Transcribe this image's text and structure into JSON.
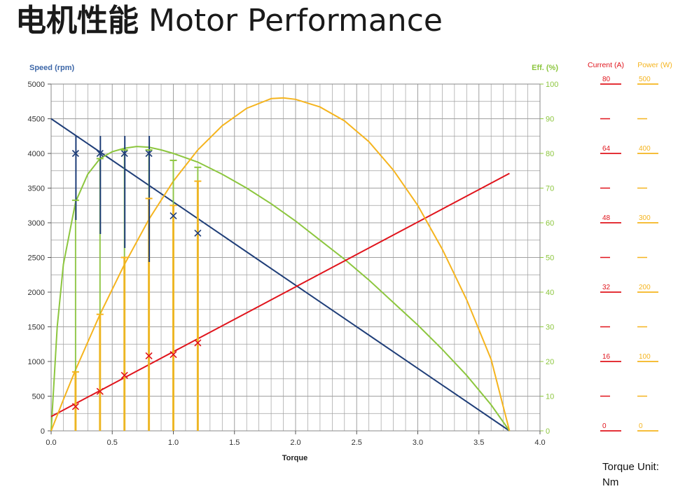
{
  "header": {
    "title_cn": "电机性能",
    "title_en": "Motor Performance"
  },
  "note": {
    "line1": "Torque Unit:",
    "line2": "Nm"
  },
  "colors": {
    "speed": "#1f3e78",
    "efficiency": "#8cc63e",
    "current": "#e0141c",
    "power": "#f5b41e",
    "grid": "#a0a0a0"
  },
  "chart_data": {
    "type": "line",
    "xlabel": "Torque",
    "xlim": [
      0,
      4
    ],
    "x_ticks": [
      "0.0",
      "0.5",
      "1.0",
      "1.5",
      "2.0",
      "2.5",
      "3.0",
      "3.5",
      "4.0"
    ],
    "y_left": {
      "label": "Speed (rpm)",
      "range": [
        0,
        5000
      ],
      "ticks": [
        "0",
        "500",
        "1000",
        "1500",
        "2000",
        "2500",
        "3000",
        "3500",
        "4000",
        "4500",
        "5000"
      ]
    },
    "y_right": {
      "label": "Eff. (%)",
      "range": [
        0,
        100
      ],
      "ticks": [
        "0",
        "10",
        "20",
        "30",
        "40",
        "50",
        "60",
        "70",
        "80",
        "90",
        "100"
      ]
    },
    "y_current": {
      "label": "Current (A)",
      "range": [
        0,
        80
      ],
      "ticks": [
        "0",
        "16",
        "32",
        "48",
        "64",
        "80"
      ]
    },
    "y_power": {
      "label": "Power (W)",
      "range": [
        0,
        500
      ],
      "ticks": [
        "0",
        "100",
        "200",
        "300",
        "400",
        "500"
      ]
    },
    "series": [
      {
        "name": "Speed (rpm)",
        "axis": "speed",
        "x": [
          0,
          3.75
        ],
        "y": [
          4500,
          0
        ],
        "points_x": [
          0.2,
          0.4,
          0.6,
          0.8,
          1.0,
          1.2
        ],
        "points_y": [
          4000,
          4000,
          4000,
          4000,
          3100,
          2850
        ]
      },
      {
        "name": "Eff. (%)",
        "axis": "eff",
        "x": [
          0,
          0.05,
          0.1,
          0.2,
          0.3,
          0.4,
          0.5,
          0.6,
          0.7,
          0.8,
          0.9,
          1.0,
          1.2,
          1.4,
          1.6,
          1.8,
          2.0,
          2.2,
          2.4,
          2.6,
          2.8,
          3.0,
          3.2,
          3.4,
          3.6,
          3.75
        ],
        "y": [
          0,
          30,
          48,
          66,
          74,
          78.5,
          80.5,
          81.5,
          82,
          81.8,
          81,
          80,
          77.5,
          74,
          70,
          65.5,
          60.5,
          55,
          49.5,
          43.5,
          37,
          30.5,
          23.5,
          16,
          7.5,
          0
        ],
        "points_x": [
          0.2,
          0.4,
          0.6,
          0.8,
          1.0,
          1.2
        ],
        "points_y": [
          66.5,
          78.5,
          81,
          81,
          78,
          76
        ]
      },
      {
        "name": "Current (A)",
        "axis": "current",
        "x": [
          0,
          3.75
        ],
        "y": [
          3.3,
          59.4
        ],
        "points_x": [
          0.2,
          0.4,
          0.6,
          0.8,
          1.0,
          1.2
        ],
        "points_y": [
          5.6,
          9.1,
          12.8,
          17.3,
          17.6,
          20.3
        ]
      },
      {
        "name": "Power (W)",
        "axis": "power",
        "x": [
          0,
          0.1,
          0.2,
          0.4,
          0.6,
          0.8,
          1.0,
          1.2,
          1.4,
          1.6,
          1.8,
          1.9,
          2.0,
          2.2,
          2.4,
          2.6,
          2.8,
          3.0,
          3.2,
          3.4,
          3.6,
          3.75
        ],
        "y": [
          0,
          45,
          88,
          168,
          240,
          305,
          360,
          405,
          440,
          465,
          479,
          480,
          478,
          467,
          447,
          417,
          376,
          325,
          262,
          189,
          103,
          0
        ],
        "points_x": [
          0.2,
          0.4,
          0.6,
          0.8,
          1.0,
          1.2
        ],
        "points_y": [
          85,
          168,
          250,
          335,
          325,
          360
        ]
      }
    ],
    "grid": true
  }
}
